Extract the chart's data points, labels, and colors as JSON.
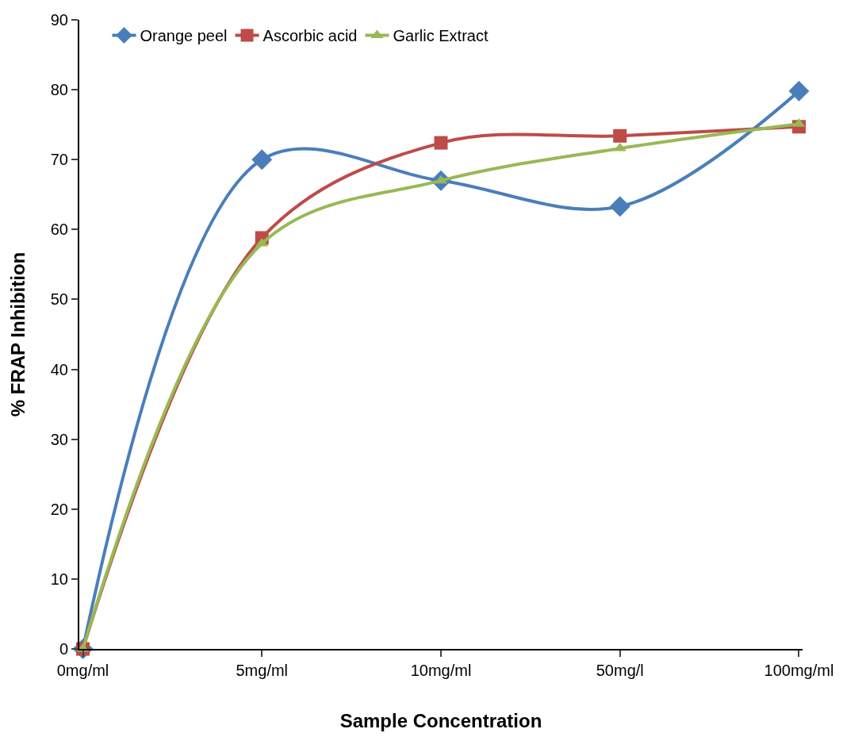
{
  "chart_data": {
    "type": "line",
    "xlabel": "Sample Concentration",
    "ylabel": "% FRAP Inhibition",
    "categories": [
      "0mg/ml",
      "5mg/ml",
      "10mg/ml",
      "50mg/l",
      "100mg/ml"
    ],
    "series": [
      {
        "name": "Orange peel",
        "color": "#4a7ebb",
        "marker": "diamond",
        "values": [
          0,
          70,
          67,
          63.3,
          79.8
        ]
      },
      {
        "name": "Ascorbic acid",
        "color": "#be4b48",
        "marker": "square",
        "values": [
          0,
          58.8,
          72.4,
          73.4,
          74.7
        ]
      },
      {
        "name": "Garlic Extract",
        "color": "#98b954",
        "marker": "triangle",
        "values": [
          0,
          58,
          67,
          71.6,
          75.1
        ]
      }
    ],
    "ylim": [
      0,
      90
    ],
    "yticks": [
      0,
      10,
      20,
      30,
      40,
      50,
      60,
      70,
      80,
      90
    ],
    "grid": false,
    "legend": "top left",
    "line_style": "solid"
  }
}
